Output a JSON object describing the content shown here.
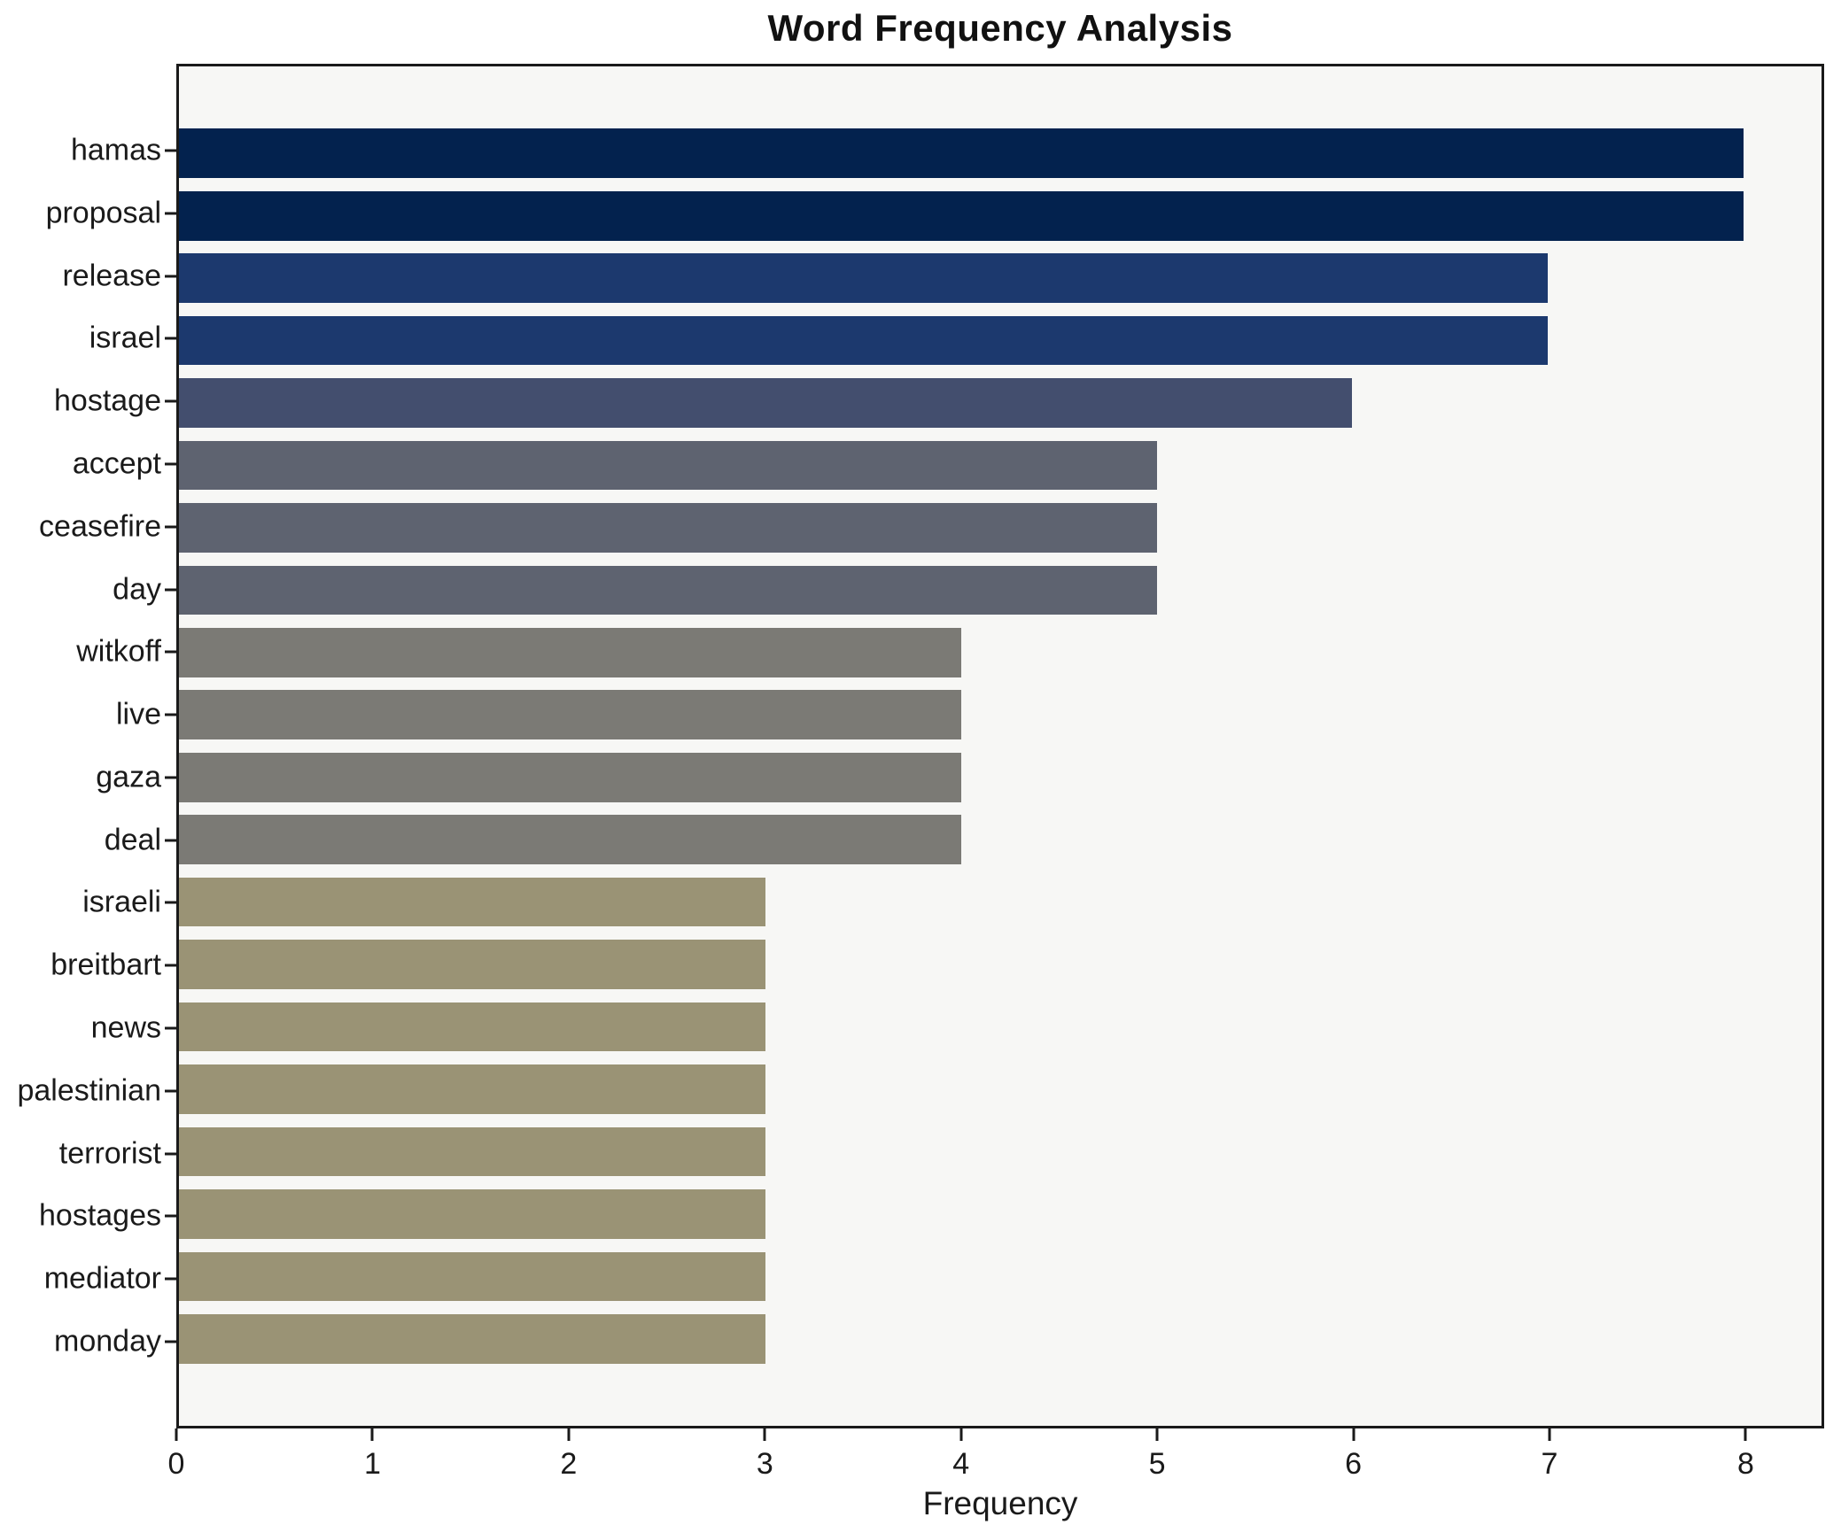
{
  "title": "Word Frequency Analysis",
  "chart_data": {
    "type": "bar",
    "orientation": "horizontal",
    "title": "Word Frequency Analysis",
    "xlabel": "Frequency",
    "ylabel": "",
    "categories": [
      "hamas",
      "proposal",
      "release",
      "israel",
      "hostage",
      "accept",
      "ceasefire",
      "day",
      "witkoff",
      "live",
      "gaza",
      "deal",
      "israeli",
      "breitbart",
      "news",
      "palestinian",
      "terrorist",
      "hostages",
      "mediator",
      "monday"
    ],
    "values": [
      8,
      8,
      7,
      7,
      6,
      5,
      5,
      5,
      4,
      4,
      4,
      4,
      3,
      3,
      3,
      3,
      3,
      3,
      3,
      3
    ],
    "bar_colors": [
      "#03224e",
      "#03224e",
      "#1c396e",
      "#1c396e",
      "#434e6e",
      "#5e6370",
      "#5e6370",
      "#5e6370",
      "#7b7a75",
      "#7b7a75",
      "#7b7a75",
      "#7b7a75",
      "#9a9375",
      "#9a9375",
      "#9a9375",
      "#9a9375",
      "#9a9375",
      "#9a9375",
      "#9a9375",
      "#9a9375"
    ],
    "xlim": [
      0,
      8.4
    ],
    "xticks": [
      0,
      1,
      2,
      3,
      4,
      5,
      6,
      7,
      8
    ],
    "grid": false,
    "legend": null,
    "plot_background": "#f7f7f5",
    "figure_background": "#ffffff"
  }
}
